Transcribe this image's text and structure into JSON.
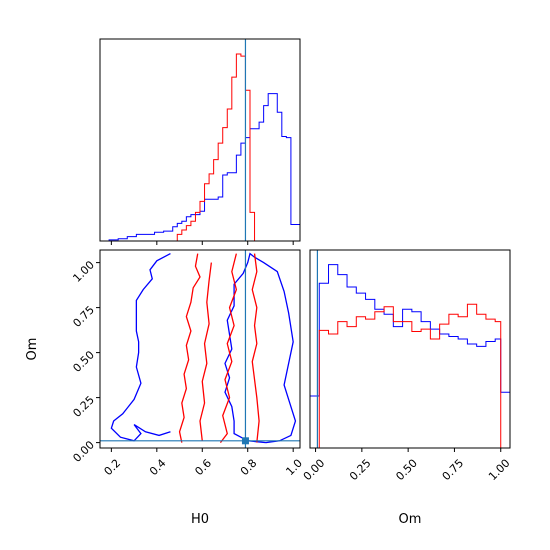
{
  "chart_data": {
    "type": "corner",
    "parameters": [
      "H0",
      "Om"
    ],
    "truth": {
      "H0": 0.79,
      "Om": 0.01
    },
    "colors": {
      "blue": "#0000ff",
      "red": "#ff0000",
      "truth": "#1f77b4"
    },
    "panels": [
      {
        "id": "hist-H0",
        "type": "histogram",
        "xlim": [
          0.15,
          1.03
        ],
        "xticks": [
          0.2,
          0.4,
          0.6,
          0.8,
          1.0
        ],
        "edges": [
          0.15,
          0.19,
          0.23,
          0.27,
          0.31,
          0.35,
          0.39,
          0.43,
          0.47,
          0.49,
          0.51,
          0.53,
          0.55,
          0.57,
          0.59,
          0.61,
          0.63,
          0.65,
          0.67,
          0.69,
          0.71,
          0.73,
          0.75,
          0.77,
          0.79,
          0.81,
          0.83,
          0.85,
          0.87,
          0.89,
          0.91,
          0.93,
          0.95,
          0.97,
          0.99,
          1.03
        ],
        "series": [
          {
            "name": "blue",
            "color": "#0000ff",
            "counts": [
              0,
              1,
              2,
              4,
              6,
              6,
              8,
              9,
              13,
              16,
              18,
              22,
              24,
              24,
              27,
              38,
              38,
              38,
              40,
              60,
              62,
              62,
              78,
              89,
              94,
              102,
              102,
              108,
              123,
              134,
              134,
              117,
              95,
              94,
              15
            ]
          },
          {
            "name": "red",
            "color": "#ff0000",
            "counts": [
              0,
              0,
              0,
              0,
              0,
              0,
              0,
              0,
              0,
              6,
              10,
              14,
              18,
              26,
              36,
              52,
              61,
              74,
              89,
              103,
              120,
              149,
              170,
              168,
              137,
              26,
              0,
              0,
              0,
              0,
              0,
              0,
              0,
              0,
              0
            ]
          }
        ]
      },
      {
        "id": "joint-H0-Om",
        "type": "contour",
        "xlim": [
          0.15,
          1.03
        ],
        "ylim": [
          -0.03,
          1.07
        ],
        "xticks": [
          0.2,
          0.4,
          0.6,
          0.8,
          1.0
        ],
        "xtick_labels": [
          "0.2",
          "0.4",
          "0.6",
          "0.8",
          "1.0"
        ],
        "yticks": [
          0.0,
          0.25,
          0.5,
          0.75,
          1.0
        ],
        "ytick_labels": [
          "0.00",
          "0.25",
          "0.50",
          "0.75",
          "1.00"
        ],
        "xlabel": "H0",
        "ylabel": "Om",
        "contours": [
          {
            "name": "blue-outer",
            "color": "#0000ff",
            "points": [
              [
                0.46,
                1.05
              ],
              [
                0.4,
                1.01
              ],
              [
                0.37,
                0.96
              ],
              [
                0.38,
                0.91
              ],
              [
                0.34,
                0.85
              ],
              [
                0.31,
                0.79
              ],
              [
                0.31,
                0.7
              ],
              [
                0.31,
                0.62
              ],
              [
                0.32,
                0.56
              ],
              [
                0.32,
                0.5
              ],
              [
                0.31,
                0.42
              ],
              [
                0.33,
                0.33
              ],
              [
                0.3,
                0.24
              ],
              [
                0.25,
                0.16
              ],
              [
                0.21,
                0.12
              ],
              [
                0.2,
                0.08
              ],
              [
                0.24,
                0.03
              ],
              [
                0.3,
                0.01
              ],
              [
                0.33,
                0.05
              ],
              [
                0.3,
                0.1
              ],
              [
                0.35,
                0.06
              ],
              [
                0.41,
                0.04
              ],
              [
                0.46,
                0.06
              ]
            ]
          },
          {
            "name": "blue-inner",
            "color": "#0000ff",
            "points": [
              [
                0.88,
                0.0
              ],
              [
                0.94,
                0.01
              ],
              [
                0.99,
                0.04
              ],
              [
                1.01,
                0.12
              ],
              [
                0.98,
                0.24
              ],
              [
                0.96,
                0.32
              ],
              [
                0.98,
                0.44
              ],
              [
                1.0,
                0.56
              ],
              [
                0.98,
                0.72
              ],
              [
                0.96,
                0.84
              ],
              [
                0.93,
                0.95
              ],
              [
                0.87,
                1.0
              ],
              [
                0.83,
                1.03
              ],
              [
                0.81,
                1.05
              ],
              [
                0.8,
                1.0
              ],
              [
                0.78,
                0.94
              ],
              [
                0.74,
                0.88
              ],
              [
                0.74,
                0.76
              ],
              [
                0.71,
                0.68
              ],
              [
                0.72,
                0.6
              ],
              [
                0.73,
                0.52
              ],
              [
                0.7,
                0.44
              ],
              [
                0.72,
                0.36
              ],
              [
                0.7,
                0.28
              ],
              [
                0.73,
                0.2
              ],
              [
                0.74,
                0.12
              ],
              [
                0.74,
                0.05
              ],
              [
                0.8,
                0.01
              ],
              [
                0.88,
                0.0
              ]
            ]
          },
          {
            "name": "red-left",
            "color": "#ff0000",
            "points": [
              [
                0.58,
                1.05
              ],
              [
                0.57,
                0.98
              ],
              [
                0.59,
                0.92
              ],
              [
                0.56,
                0.86
              ],
              [
                0.55,
                0.78
              ],
              [
                0.53,
                0.7
              ],
              [
                0.55,
                0.62
              ],
              [
                0.53,
                0.54
              ],
              [
                0.54,
                0.46
              ],
              [
                0.52,
                0.38
              ],
              [
                0.53,
                0.3
              ],
              [
                0.51,
                0.22
              ],
              [
                0.52,
                0.14
              ],
              [
                0.5,
                0.06
              ],
              [
                0.51,
                0.0
              ]
            ]
          },
          {
            "name": "red-right",
            "color": "#ff0000",
            "points": [
              [
                0.83,
                1.05
              ],
              [
                0.84,
                0.95
              ],
              [
                0.82,
                0.85
              ],
              [
                0.84,
                0.75
              ],
              [
                0.83,
                0.65
              ],
              [
                0.84,
                0.55
              ],
              [
                0.82,
                0.45
              ],
              [
                0.83,
                0.35
              ],
              [
                0.84,
                0.25
              ],
              [
                0.85,
                0.12
              ],
              [
                0.84,
                0.0
              ]
            ]
          },
          {
            "name": "red-mid-left",
            "color": "#ff0000",
            "points": [
              [
                0.64,
                1.0
              ],
              [
                0.63,
                0.9
              ],
              [
                0.62,
                0.78
              ],
              [
                0.63,
                0.66
              ],
              [
                0.61,
                0.55
              ],
              [
                0.62,
                0.44
              ],
              [
                0.6,
                0.34
              ],
              [
                0.61,
                0.22
              ],
              [
                0.59,
                0.12
              ],
              [
                0.6,
                0.01
              ]
            ]
          },
          {
            "name": "red-mid-right",
            "color": "#ff0000",
            "points": [
              [
                0.75,
                1.05
              ],
              [
                0.73,
                0.95
              ],
              [
                0.75,
                0.85
              ],
              [
                0.72,
                0.75
              ],
              [
                0.74,
                0.65
              ],
              [
                0.71,
                0.55
              ],
              [
                0.73,
                0.45
              ],
              [
                0.7,
                0.35
              ],
              [
                0.72,
                0.25
              ],
              [
                0.69,
                0.15
              ],
              [
                0.71,
                0.05
              ],
              [
                0.68,
                0.0
              ]
            ]
          }
        ]
      },
      {
        "id": "hist-Om",
        "type": "histogram",
        "xlim": [
          -0.03,
          1.05
        ],
        "xticks": [
          0.0,
          0.25,
          0.5,
          0.75,
          1.0
        ],
        "xtick_labels": [
          "0.00",
          "0.25",
          "0.50",
          "0.75",
          "1.00"
        ],
        "xlabel": "Om",
        "edges": [
          -0.03,
          0.02,
          0.07,
          0.12,
          0.17,
          0.22,
          0.27,
          0.32,
          0.37,
          0.42,
          0.47,
          0.52,
          0.57,
          0.62,
          0.67,
          0.72,
          0.77,
          0.82,
          0.87,
          0.92,
          0.97,
          1.0,
          1.05
        ],
        "series": [
          {
            "name": "blue",
            "color": "#0000ff",
            "counts": [
              42,
              133,
              148,
              140,
              130,
              125,
              120,
              112,
              108,
              98,
              112,
              110,
              102,
              96,
              92,
              90,
              88,
              84,
              82,
              86,
              88,
              45
            ]
          },
          {
            "name": "red",
            "color": "#ff0000",
            "counts": [
              0,
              95,
              92,
              102,
              98,
              106,
              104,
              110,
              114,
              102,
              102,
              94,
              96,
              88,
              100,
              108,
              106,
              116,
              108,
              104,
              102,
              0
            ]
          }
        ]
      }
    ]
  }
}
